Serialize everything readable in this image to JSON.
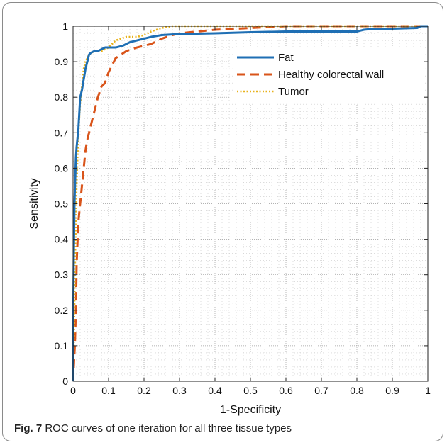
{
  "caption": {
    "label": "Fig. 7",
    "text": "ROC curves of one iteration for all three tissue types"
  },
  "chart_data": {
    "type": "line",
    "title": "",
    "xlabel": "1-Specificity",
    "ylabel": "Sensitivity",
    "xlim": [
      0,
      1
    ],
    "ylim": [
      0,
      1
    ],
    "grid": true,
    "minor_grid": true,
    "legend_placement": "top-right",
    "x_ticks": [
      "0",
      "0.1",
      "0.2",
      "0.3",
      "0.4",
      "0.5",
      "0.6",
      "0.7",
      "0.8",
      "0.9",
      "1"
    ],
    "y_ticks": [
      "0",
      "0.1",
      "0.2",
      "0.3",
      "0.4",
      "0.5",
      "0.6",
      "0.7",
      "0.8",
      "0.9",
      "1"
    ],
    "series": [
      {
        "name": "Fat",
        "color": "#1f6fb4",
        "dash": "solid",
        "x": [
          0,
          0,
          0.002,
          0.004,
          0.006,
          0.008,
          0.01,
          0.015,
          0.02,
          0.025,
          0.03,
          0.035,
          0.04,
          0.045,
          0.05,
          0.06,
          0.07,
          0.08,
          0.09,
          0.1,
          0.12,
          0.14,
          0.16,
          0.18,
          0.2,
          0.22,
          0.25,
          0.3,
          0.4,
          0.5,
          0.6,
          0.7,
          0.8,
          0.82,
          0.84,
          0.9,
          0.97,
          0.98,
          1
        ],
        "y": [
          0,
          0.12,
          0.35,
          0.5,
          0.57,
          0.63,
          0.66,
          0.71,
          0.8,
          0.82,
          0.85,
          0.88,
          0.9,
          0.92,
          0.925,
          0.93,
          0.93,
          0.935,
          0.94,
          0.94,
          0.94,
          0.945,
          0.955,
          0.96,
          0.965,
          0.97,
          0.975,
          0.978,
          0.98,
          0.983,
          0.985,
          0.985,
          0.985,
          0.99,
          0.992,
          0.993,
          0.995,
          1,
          1
        ]
      },
      {
        "name": "Healthy colorectal wall",
        "color": "#d9541a",
        "dash": "dashed",
        "x": [
          0,
          0.005,
          0.008,
          0.01,
          0.015,
          0.02,
          0.025,
          0.03,
          0.035,
          0.04,
          0.05,
          0.06,
          0.07,
          0.08,
          0.09,
          0.1,
          0.12,
          0.15,
          0.18,
          0.2,
          0.22,
          0.25,
          0.28,
          0.3,
          0.35,
          0.4,
          0.5,
          0.6,
          1
        ],
        "y": [
          0,
          0.1,
          0.2,
          0.33,
          0.45,
          0.5,
          0.55,
          0.6,
          0.65,
          0.68,
          0.72,
          0.76,
          0.8,
          0.83,
          0.84,
          0.87,
          0.91,
          0.93,
          0.94,
          0.945,
          0.95,
          0.965,
          0.975,
          0.98,
          0.985,
          0.99,
          0.995,
          1,
          1
        ]
      },
      {
        "name": "Tumor",
        "color": "#e8b21c",
        "dash": "dotted",
        "x": [
          0,
          0.003,
          0.006,
          0.01,
          0.015,
          0.02,
          0.025,
          0.03,
          0.035,
          0.045,
          0.06,
          0.08,
          0.1,
          0.12,
          0.15,
          0.18,
          0.2,
          0.22,
          0.25,
          0.28,
          0.3,
          1
        ],
        "y": [
          0,
          0.15,
          0.35,
          0.55,
          0.7,
          0.78,
          0.83,
          0.88,
          0.9,
          0.92,
          0.93,
          0.93,
          0.94,
          0.96,
          0.97,
          0.97,
          0.975,
          0.985,
          0.995,
          1,
          1,
          1
        ]
      }
    ]
  }
}
